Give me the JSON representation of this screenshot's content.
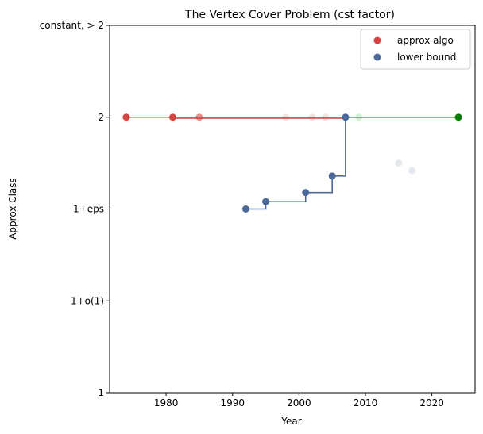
{
  "chart_data": {
    "type": "scatter",
    "title": "The Vertex Cover Problem (cst factor)",
    "xlabel": "Year",
    "ylabel": "Approx Class",
    "xlim": [
      1971.5,
      2026.5
    ],
    "ylim": [
      1,
      3
    ],
    "x_ticks": [
      1980,
      1990,
      2000,
      2010,
      2020
    ],
    "y_ticks": [
      {
        "value": 1,
        "label": "1"
      },
      {
        "value": 1.5,
        "label": "1+o(1)"
      },
      {
        "value": 2,
        "label": "1+eps"
      },
      {
        "value": 2.5,
        "label": "2"
      },
      {
        "value": 3,
        "label": "constant, > 2"
      }
    ],
    "grid": false,
    "legend_position": "top-right",
    "series": [
      {
        "name": "approx algo",
        "color": "#d64541",
        "points": [
          {
            "x": 1974,
            "y": 2.5,
            "alpha": 1.0
          },
          {
            "x": 1981,
            "y": 2.5,
            "alpha": 1.0
          },
          {
            "x": 1985,
            "y": 2.5,
            "alpha": 0.6
          },
          {
            "x": 1998,
            "y": 2.5,
            "alpha": 0.15
          },
          {
            "x": 2002,
            "y": 2.5,
            "alpha": 0.15
          },
          {
            "x": 2004,
            "y": 2.5,
            "alpha": 0.15
          }
        ],
        "step_line": [
          {
            "x": 1974,
            "y": 2.5
          },
          {
            "x": 1981,
            "y": 2.495
          },
          {
            "x": 2007,
            "y": 2.495
          }
        ]
      },
      {
        "name": "lower bound",
        "color": "#4c6a9c",
        "points": [
          {
            "x": 1992,
            "y": 2.0,
            "alpha": 1.0
          },
          {
            "x": 1995,
            "y": 2.04,
            "alpha": 1.0
          },
          {
            "x": 2001,
            "y": 2.09,
            "alpha": 1.0
          },
          {
            "x": 2005,
            "y": 2.18,
            "alpha": 1.0
          },
          {
            "x": 2007,
            "y": 2.5,
            "alpha": 1.0
          },
          {
            "x": 2015,
            "y": 2.25,
            "alpha": 0.15
          },
          {
            "x": 2017,
            "y": 2.21,
            "alpha": 0.15
          }
        ],
        "step_line": [
          {
            "x": 1992,
            "y": 2.0
          },
          {
            "x": 1995,
            "y": 2.04
          },
          {
            "x": 2001,
            "y": 2.09
          },
          {
            "x": 2005,
            "y": 2.18
          },
          {
            "x": 2007,
            "y": 2.5
          }
        ]
      },
      {
        "name": "",
        "color": "#008000",
        "points": [
          {
            "x": 2009,
            "y": 2.5,
            "alpha": 0.15
          },
          {
            "x": 2024,
            "y": 2.5,
            "alpha": 1.0
          }
        ],
        "step_line": [
          {
            "x": 2007,
            "y": 2.5
          },
          {
            "x": 2024,
            "y": 2.5
          }
        ]
      }
    ]
  }
}
